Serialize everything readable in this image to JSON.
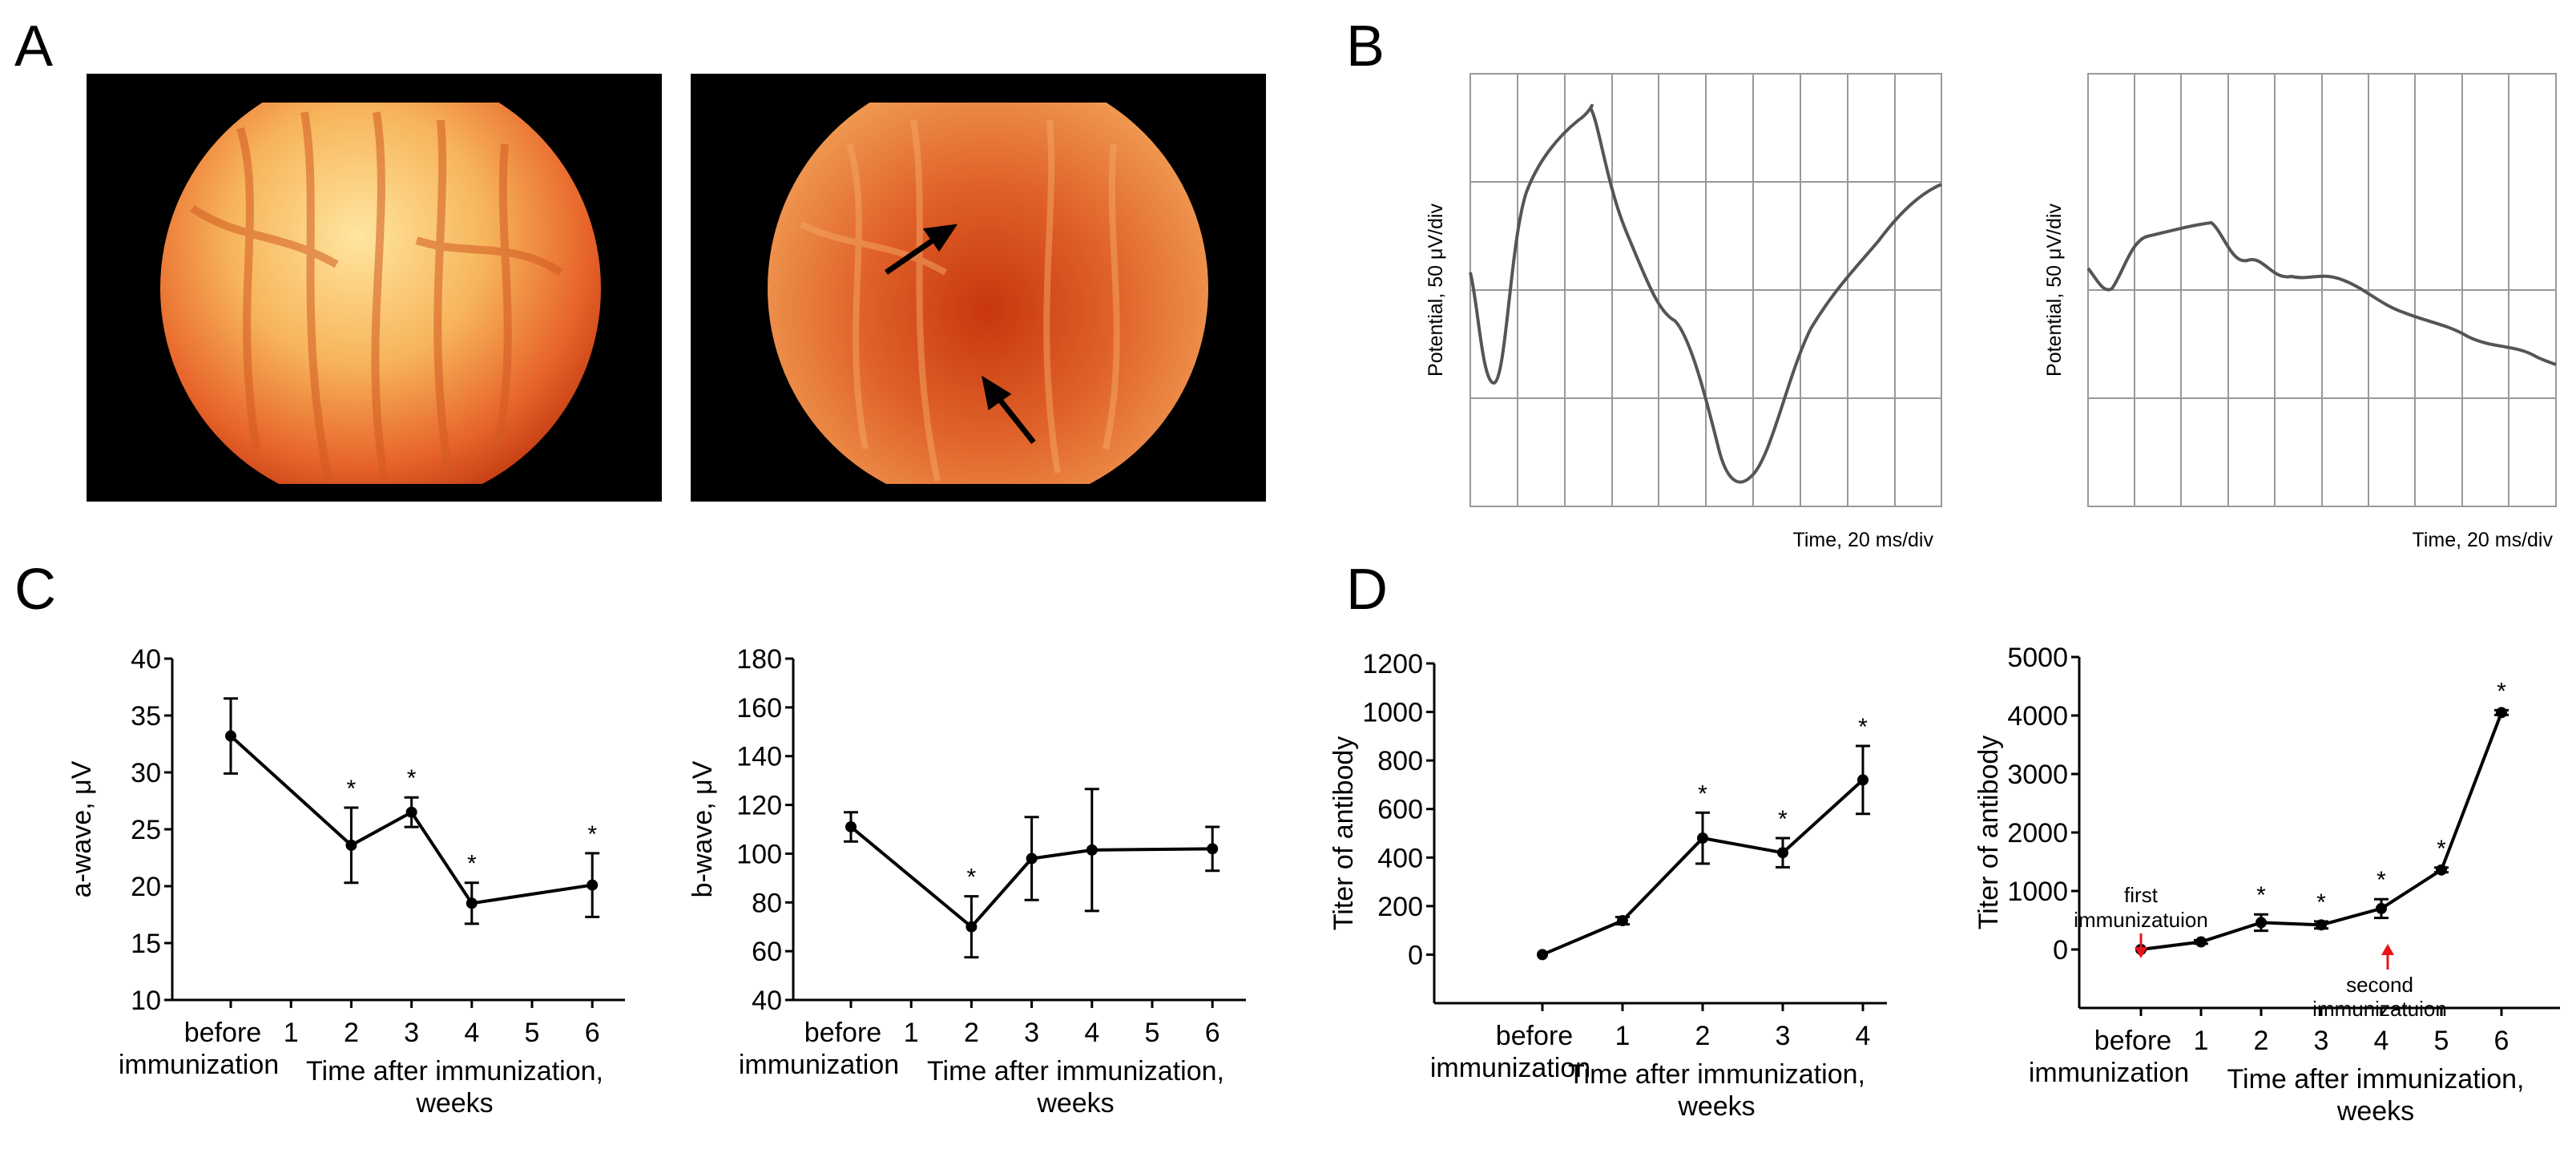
{
  "panel_letters": {
    "a": "A",
    "b": "B",
    "c": "C",
    "d": "D"
  },
  "colors": {
    "ink": "#000000",
    "grid": "#999999",
    "trace": "#555555",
    "arrow_red": "#e8141a",
    "fundus_dark": "#000000"
  },
  "panel_b": {
    "left": {
      "y_label": "Potential, 50 μV/div",
      "x_label": "Time, 20 ms/div"
    },
    "right": {
      "y_label": "Potential, 50 μV/div",
      "x_label": "Time, 20 ms/div"
    }
  },
  "chart_data": [
    {
      "type": "line",
      "ylabel": "a-wave, μV",
      "xlabel_lines": [
        "Time after immunization,",
        "weeks"
      ],
      "ylim": [
        10,
        40
      ],
      "yticks": [
        10,
        15,
        20,
        25,
        30,
        35,
        40
      ],
      "xticks": [
        "before immunization",
        "1",
        "2",
        "3",
        "4",
        "5",
        "6"
      ],
      "tick_positions": [
        0,
        1,
        2,
        3,
        4,
        5,
        6
      ],
      "x": [
        0,
        2,
        3,
        4,
        6
      ],
      "values": [
        33.2,
        23.6,
        26.5,
        18.5,
        20.1
      ],
      "errors": [
        3.3,
        3.3,
        1.3,
        1.8,
        2.8
      ],
      "significant": [
        false,
        true,
        true,
        true,
        true
      ]
    },
    {
      "type": "line",
      "ylabel": "b-wave, μV",
      "xlabel_lines": [
        "Time after immunization,",
        "weeks"
      ],
      "ylim": [
        40,
        180
      ],
      "yticks": [
        40,
        60,
        80,
        100,
        120,
        140,
        160,
        180
      ],
      "xticks": [
        "before immunization",
        "1",
        "2",
        "3",
        "4",
        "5",
        "6"
      ],
      "tick_positions": [
        0,
        1,
        2,
        3,
        4,
        5,
        6
      ],
      "x": [
        0,
        2,
        3,
        4,
        6
      ],
      "values": [
        111,
        70,
        98,
        101.5,
        102
      ],
      "errors": [
        6,
        12.5,
        17,
        25,
        9
      ],
      "significant": [
        false,
        true,
        false,
        false,
        false
      ]
    },
    {
      "type": "line",
      "ylabel": "Titer of antibody",
      "xlabel_lines": [
        "Time after immunization,",
        "weeks"
      ],
      "ylim": [
        -200,
        1200
      ],
      "yticks": [
        0,
        200,
        400,
        600,
        800,
        1000,
        1200
      ],
      "xticks": [
        "before immunization",
        "1",
        "2",
        "3",
        "4"
      ],
      "tick_positions": [
        0,
        1,
        2,
        3,
        4
      ],
      "x": [
        0,
        1,
        2,
        3,
        4
      ],
      "values": [
        0,
        140,
        480,
        420,
        720
      ],
      "errors": [
        0,
        15,
        105,
        60,
        140
      ],
      "significant": [
        false,
        false,
        true,
        true,
        true
      ]
    },
    {
      "type": "line",
      "ylabel": "Titer of antibody",
      "xlabel_lines": [
        "Time after immunization,",
        "weeks"
      ],
      "ylim": [
        -1000,
        5000
      ],
      "yticks": [
        0,
        1000,
        2000,
        3000,
        4000,
        5000
      ],
      "xticks": [
        "before immunization",
        "1",
        "2",
        "3",
        "4",
        "5",
        "6"
      ],
      "tick_positions": [
        0,
        1,
        2,
        3,
        4,
        5,
        6
      ],
      "x": [
        0,
        1,
        2,
        3,
        4,
        5,
        6
      ],
      "values": [
        0,
        130,
        460,
        420,
        700,
        1360,
        4050
      ],
      "errors": [
        0,
        30,
        140,
        60,
        160,
        40,
        40
      ],
      "significant": [
        false,
        false,
        true,
        true,
        true,
        true,
        true
      ],
      "annotations": [
        {
          "text_lines": [
            "first",
            "immunizatuion"
          ],
          "x": 0,
          "arrow": "down"
        },
        {
          "text_lines": [
            "second",
            "immunizatuion"
          ],
          "x": 4,
          "arrow": "up"
        }
      ]
    }
  ]
}
